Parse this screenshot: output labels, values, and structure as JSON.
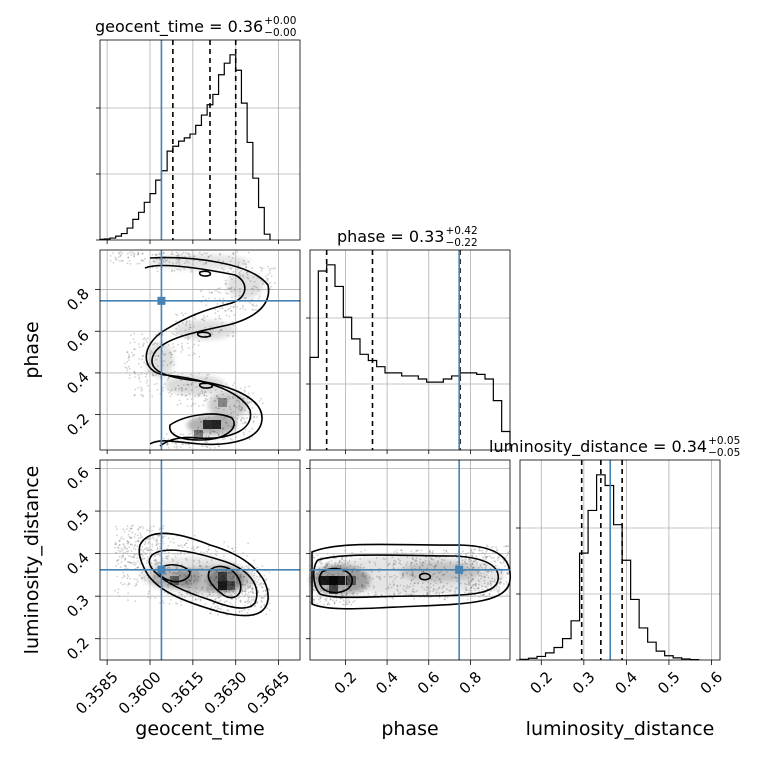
{
  "chart_data": {
    "type": "corner",
    "parameters": [
      {
        "name": "geocent_time",
        "label": "geocent_time",
        "range": [
          0.35825,
          0.36525
        ],
        "ticks": [
          0.3585,
          0.36,
          0.3615,
          0.363,
          0.3645
        ],
        "tick_labels": [
          "0.3585",
          "0.3600",
          "0.3615",
          "0.3630",
          "0.3645"
        ],
        "truth": 0.3604,
        "quantiles": [
          0.3608,
          0.3621,
          0.363
        ]
      },
      {
        "name": "phase",
        "label": "phase",
        "range": [
          0.03,
          0.99
        ],
        "ticks": [
          0.2,
          0.4,
          0.6,
          0.8
        ],
        "tick_labels": [
          "0.2",
          "0.4",
          "0.6",
          "0.8"
        ],
        "truth": 0.746,
        "quantiles": [
          0.11,
          0.33,
          0.75
        ]
      },
      {
        "name": "luminosity_distance",
        "label": "luminosity_distance",
        "range": [
          0.15,
          0.62
        ],
        "ticks": [
          0.2,
          0.3,
          0.4,
          0.5,
          0.6
        ],
        "tick_labels": [
          "0.2",
          "0.3",
          "0.4",
          "0.5",
          "0.6"
        ],
        "truth": 0.362,
        "quantiles": [
          0.295,
          0.34,
          0.39
        ]
      }
    ],
    "titles": [
      {
        "text": "geocent_time = 0.36",
        "sup": "+0.00",
        "sub": "−0.00"
      },
      {
        "text": "phase = 0.33",
        "sup": "+0.42",
        "sub": "−0.22"
      },
      {
        "text": "luminosity_distance = 0.34",
        "sup": "+0.05",
        "sub": "−0.05"
      }
    ],
    "histograms": [
      {
        "parameter": "geocent_time",
        "bin_edges": [
          0.3582,
          0.3584,
          0.3586,
          0.3588,
          0.359,
          0.3592,
          0.3594,
          0.3596,
          0.3598,
          0.36,
          0.3602,
          0.3604,
          0.3606,
          0.3608,
          0.361,
          0.3612,
          0.3614,
          0.3616,
          0.3618,
          0.362,
          0.3622,
          0.3624,
          0.3626,
          0.3628,
          0.363,
          0.3632,
          0.3634,
          0.3636,
          0.3638,
          0.364,
          0.3642
        ],
        "counts": [
          2,
          3,
          6,
          12,
          20,
          37,
          64,
          86,
          117,
          144,
          186,
          215,
          276,
          291,
          307,
          317,
          329,
          356,
          388,
          420,
          452,
          513,
          549,
          575,
          527,
          425,
          303,
          192,
          101,
          18
        ]
      },
      {
        "parameter": "phase",
        "bin_edges": [
          0.03,
          0.07,
          0.11,
          0.15,
          0.19,
          0.23,
          0.27,
          0.31,
          0.35,
          0.39,
          0.43,
          0.47,
          0.51,
          0.55,
          0.59,
          0.63,
          0.67,
          0.71,
          0.75,
          0.79,
          0.83,
          0.87,
          0.91,
          0.95,
          0.99
        ],
        "counts": [
          300,
          580,
          600,
          530,
          430,
          360,
          310,
          290,
          270,
          250,
          250,
          240,
          240,
          230,
          220,
          220,
          230,
          240,
          250,
          250,
          245,
          230,
          160,
          60
        ]
      },
      {
        "parameter": "luminosity_distance",
        "bin_edges": [
          0.15,
          0.17,
          0.19,
          0.21,
          0.23,
          0.25,
          0.27,
          0.29,
          0.31,
          0.33,
          0.35,
          0.37,
          0.39,
          0.41,
          0.43,
          0.45,
          0.47,
          0.49,
          0.51,
          0.53,
          0.55,
          0.57
        ],
        "counts": [
          2,
          5,
          10,
          20,
          35,
          60,
          110,
          300,
          420,
          520,
          490,
          380,
          280,
          170,
          90,
          50,
          25,
          12,
          6,
          3,
          1
        ]
      }
    ],
    "pairs": [
      {
        "x": "geocent_time",
        "y": "phase",
        "contour_levels": 3,
        "peak": [
          0.3628,
          0.15
        ]
      },
      {
        "x": "geocent_time",
        "y": "luminosity_distance",
        "contour_levels": 3,
        "peak": [
          0.3628,
          0.34
        ]
      },
      {
        "x": "phase",
        "y": "luminosity_distance",
        "contour_levels": 3,
        "peak": [
          0.1,
          0.34
        ]
      }
    ]
  }
}
